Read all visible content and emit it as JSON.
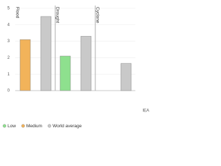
{
  "chart_data": {
    "type": "bar",
    "categories": [
      "Flood",
      "Drought",
      "Cyclone"
    ],
    "series": [
      {
        "name": "Low",
        "color": "#8ee08e",
        "values": [
          null,
          2.1,
          null
        ]
      },
      {
        "name": "Medium",
        "color": "#f2b35a",
        "values": [
          3.1,
          null,
          null
        ]
      },
      {
        "name": "World average",
        "color": "#c9c9c9",
        "values": [
          4.5,
          3.3,
          1.65
        ]
      }
    ],
    "ylim": [
      0,
      5
    ],
    "yticks": [
      0,
      1,
      2,
      3,
      4,
      5
    ],
    "grid": true,
    "source": "IEA",
    "legend": "bottom"
  }
}
